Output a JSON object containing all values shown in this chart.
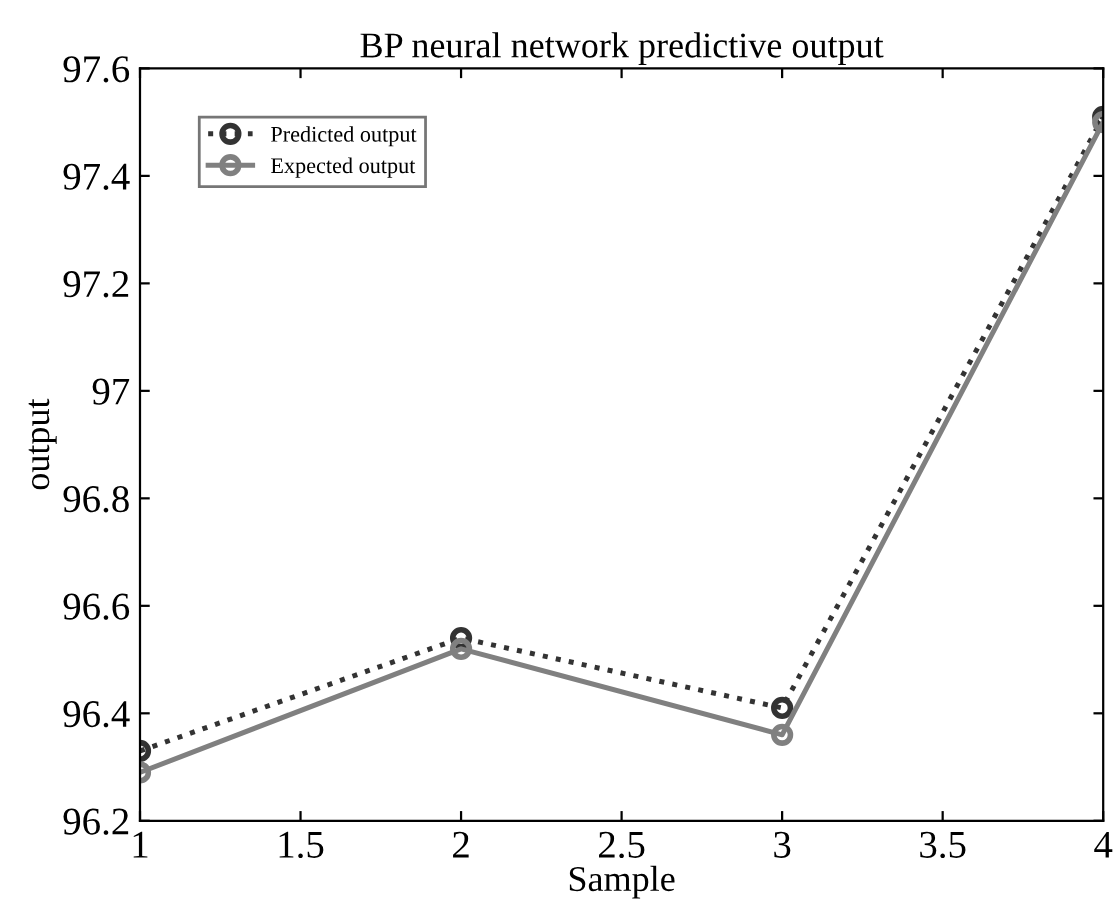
{
  "chart_data": {
    "type": "line",
    "title": "BP neural network predictive output",
    "xlabel": "Sample",
    "ylabel": "output",
    "x": [
      1,
      2,
      3,
      4
    ],
    "series": [
      {
        "name": "Predicted output",
        "color": "#333333",
        "values": [
          96.33,
          96.54,
          96.41,
          97.51
        ],
        "marker": "circle",
        "line_style": "dotted"
      },
      {
        "name": "Expected output",
        "color": "#808080",
        "values": [
          96.29,
          96.52,
          96.36,
          97.5
        ],
        "marker": "circle",
        "line_style": "solid"
      }
    ],
    "xlim": [
      1,
      4
    ],
    "xticks": [
      1,
      1.5,
      2,
      2.5,
      3,
      3.5,
      4
    ],
    "ylim": [
      96.2,
      97.6
    ],
    "yticks": [
      96.2,
      96.4,
      96.6,
      96.8,
      97,
      97.2,
      97.4,
      97.6
    ],
    "grid": false,
    "legend": "top left"
  }
}
